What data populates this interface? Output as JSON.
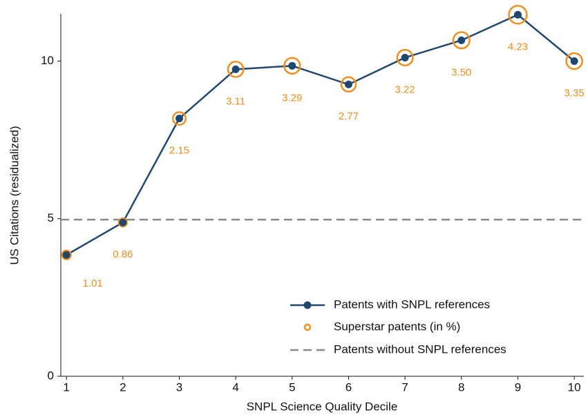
{
  "chart_data": {
    "type": "line",
    "xlabel": "SNPL Science Quality Decile",
    "ylabel": "US Citations (residualized)",
    "x": [
      1,
      2,
      3,
      4,
      5,
      6,
      7,
      8,
      9,
      10
    ],
    "series": [
      {
        "name": "Patents with SNPL references",
        "color": "#22476f",
        "values": [
          3.85,
          4.88,
          8.18,
          9.74,
          9.85,
          9.26,
          10.11,
          10.66,
          11.47,
          10.0
        ]
      },
      {
        "name": "Superstar patents (in %)",
        "color": "#f28e1c",
        "values": [
          1.01,
          0.86,
          2.15,
          3.11,
          3.29,
          2.77,
          3.22,
          3.5,
          4.23,
          3.35
        ],
        "value_labels": [
          "1.01",
          "0.86",
          "2.15",
          "3.11",
          "3.29",
          "2.77",
          "3.22",
          "3.50",
          "4.23",
          "3.35"
        ]
      }
    ],
    "reference_line": {
      "name": "Patents without SNPL references",
      "value": 4.97,
      "color": "#888888"
    },
    "xlim": [
      0.9,
      10.17
    ],
    "ylim": [
      0,
      11.5
    ],
    "xticks": [
      1,
      2,
      3,
      4,
      5,
      6,
      7,
      8,
      9,
      10
    ],
    "yticks": [
      0,
      5,
      10
    ],
    "grid": false
  }
}
